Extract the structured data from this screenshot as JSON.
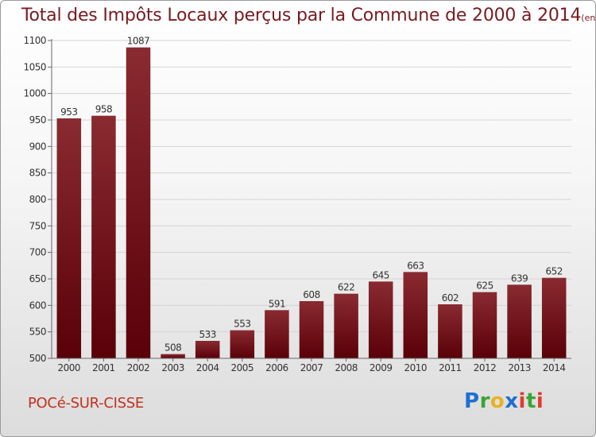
{
  "header": {
    "title": "Total des Impôts Locaux perçus par la Commune de 2000 à 2014",
    "unit": "(en milliers d'€)"
  },
  "footer": {
    "commune": "POCé-SUR-CISSE",
    "logo": "Proxiti",
    "logo_colors": [
      "#1f6fd1",
      "#3aa535",
      "#e8b321",
      "#1f6fd1",
      "#e23b2e",
      "#3aa535",
      "#e23b2e"
    ]
  },
  "colors": {
    "bar_top": "#8a2a31",
    "bar_bottom": "#5a0008",
    "grid": "#d4d4d4",
    "axis": "#666666",
    "title": "#7a1a20",
    "commune": "#c3311f"
  },
  "chart_data": {
    "type": "bar",
    "title": "Total des Impôts Locaux perçus par la Commune de 2000 à 2014",
    "xlabel": "",
    "ylabel": "(en milliers d'€)",
    "categories": [
      "2000",
      "2001",
      "2002",
      "2003",
      "2004",
      "2005",
      "2006",
      "2007",
      "2008",
      "2009",
      "2010",
      "2011",
      "2012",
      "2013",
      "2014"
    ],
    "values": [
      953,
      958,
      1087,
      508,
      533,
      553,
      591,
      608,
      622,
      645,
      663,
      602,
      625,
      639,
      652
    ],
    "ylim": [
      500,
      1100
    ],
    "yticks": [
      500,
      550,
      600,
      650,
      700,
      750,
      800,
      850,
      900,
      950,
      1000,
      1050,
      1100
    ],
    "grid": true
  }
}
